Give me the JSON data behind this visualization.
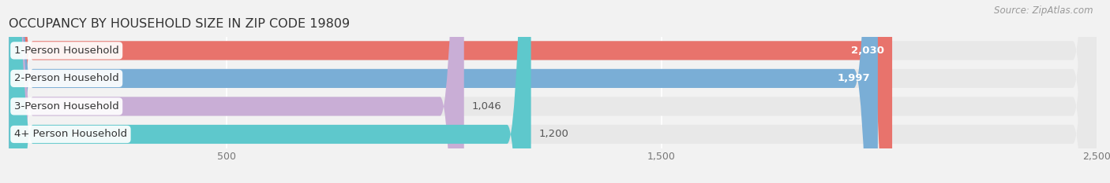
{
  "title": "OCCUPANCY BY HOUSEHOLD SIZE IN ZIP CODE 19809",
  "source": "Source: ZipAtlas.com",
  "categories": [
    "1-Person Household",
    "2-Person Household",
    "3-Person Household",
    "4+ Person Household"
  ],
  "values": [
    2030,
    1997,
    1046,
    1200
  ],
  "bar_colors": [
    "#e8736c",
    "#7aaed6",
    "#c9aed6",
    "#5ec8cc"
  ],
  "value_inside": [
    true,
    true,
    false,
    false
  ],
  "xlim": [
    0,
    2500
  ],
  "xticks": [
    500,
    1500,
    2500
  ],
  "background_color": "#f2f2f2",
  "bar_bg_color": "#e8e8e8",
  "title_fontsize": 11.5,
  "source_fontsize": 8.5,
  "label_fontsize": 9.5,
  "value_fontsize": 9.5
}
